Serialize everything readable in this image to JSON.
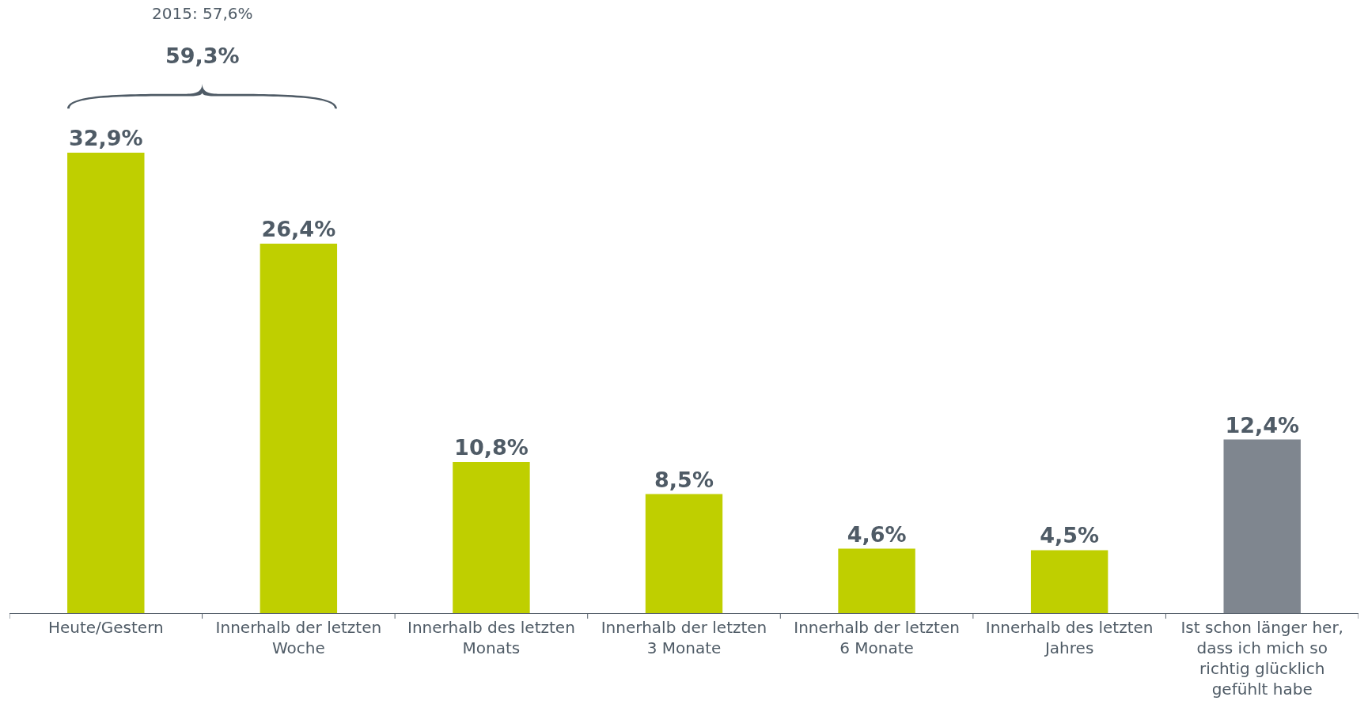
{
  "chart_data": {
    "type": "bar",
    "categories": [
      "Heute/Gestern",
      "Innerhalb der letzten Woche",
      "Innerhalb des letzten Monats",
      "Innerhalb der letzten 3 Monate",
      "Innerhalb der letzten 6 Monate",
      "Innerhalb des letzten Jahres",
      "Ist schon länger her, dass ich mich so richtig glücklich gefühlt habe"
    ],
    "values": [
      32.9,
      26.4,
      10.8,
      8.5,
      4.6,
      4.5,
      12.4
    ],
    "colors": [
      "#bfcf00",
      "#bfcf00",
      "#bfcf00",
      "#bfcf00",
      "#bfcf00",
      "#bfcf00",
      "#7f868f"
    ],
    "value_labels": [
      "32,9%",
      "26,4%",
      "10,8%",
      "8,5%",
      "4,6%",
      "4,5%",
      "12,4%"
    ],
    "annotations": [
      "2015: 57,6%",
      "59,3%"
    ],
    "tick_labels": "x"
  }
}
